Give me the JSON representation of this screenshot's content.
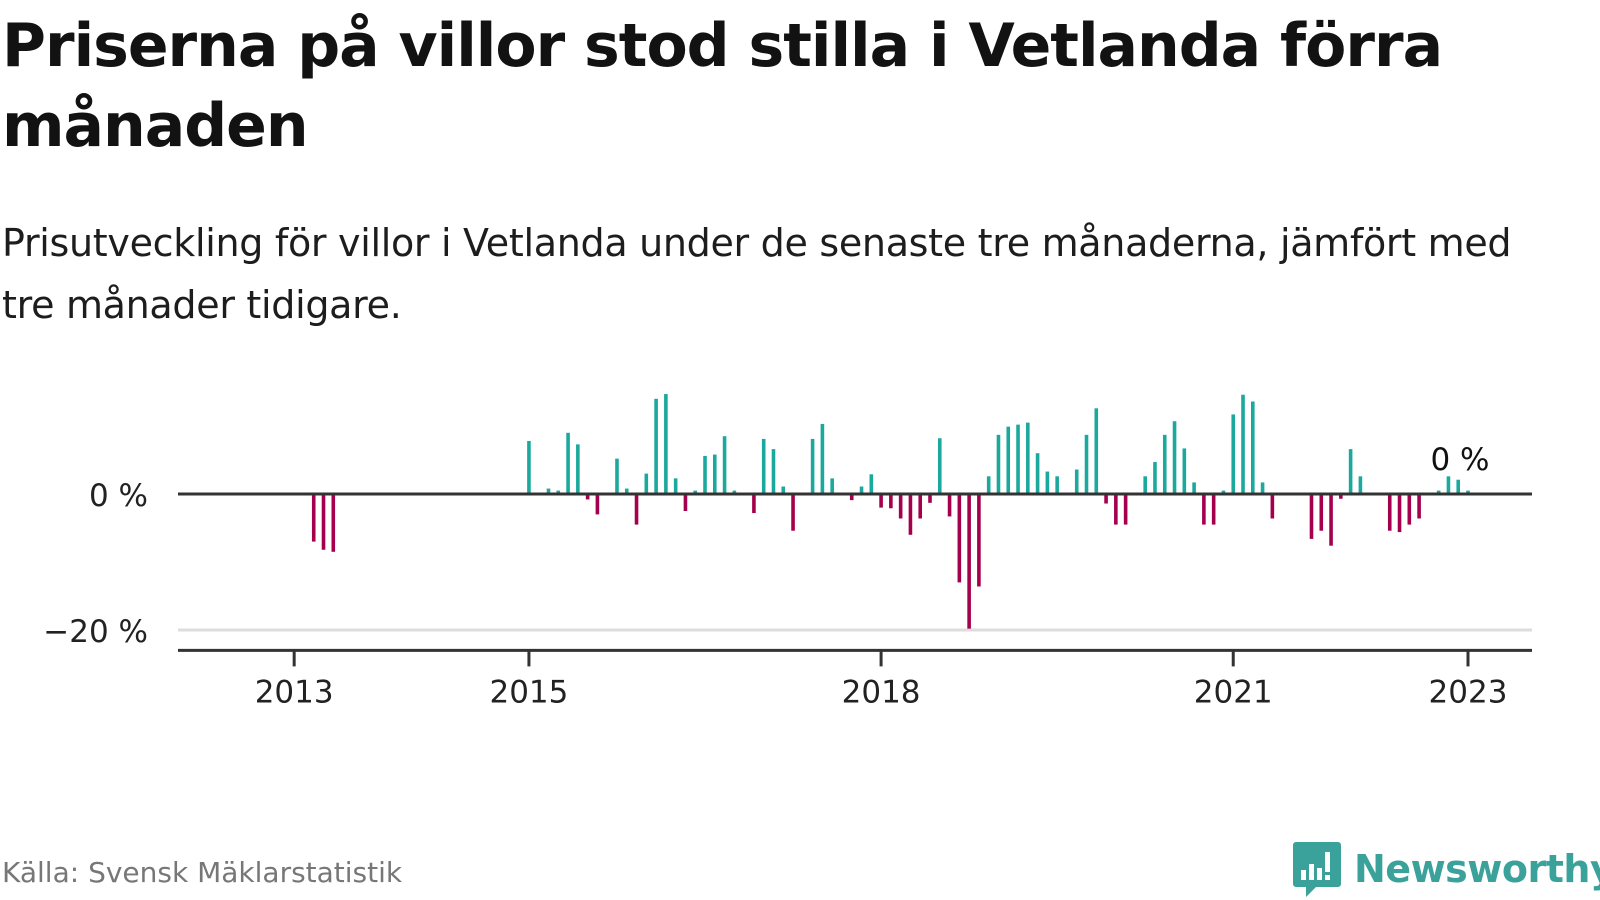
{
  "title": "Priserna på villor stod stilla i Vetlanda förra månaden",
  "subtitle": "Prisutveckling för villor i Vetlanda under de senaste tre månaderna, jämfört med tre månader tidigare.",
  "source": "Källa: Svensk Mäklarstatistik",
  "brand": "Newsworthy",
  "colors": {
    "positive": "#1ba99d",
    "negative": "#a5004e",
    "axis": "#333333",
    "grid": "#dddddd",
    "brand": "#3aa29a"
  },
  "chart_data": {
    "type": "bar",
    "title": "",
    "xlabel": "",
    "ylabel": "",
    "ylim": [
      -23,
      16
    ],
    "y_ticks": [
      {
        "value": 0,
        "label": "0 %"
      },
      {
        "value": -20,
        "label": "−20 %"
      }
    ],
    "x_ticks": [
      "2013",
      "2015",
      "2018",
      "2021",
      "2023"
    ],
    "annotation": "0 %",
    "series": [
      {
        "values": [
          [
            "2013-03",
            -7
          ],
          [
            "2013-04",
            -8.2
          ],
          [
            "2013-05",
            -8.5
          ],
          [
            "2015-01",
            7.8
          ],
          [
            "2015-03",
            0.8
          ],
          [
            "2015-04",
            0.5
          ],
          [
            "2015-05",
            9
          ],
          [
            "2015-06",
            7.3
          ],
          [
            "2015-07",
            -0.8
          ],
          [
            "2015-08",
            -3
          ],
          [
            "2015-10",
            5.2
          ],
          [
            "2015-11",
            0.8
          ],
          [
            "2015-12",
            -4.5
          ],
          [
            "2016-01",
            3
          ],
          [
            "2016-02",
            14
          ],
          [
            "2016-03",
            14.7
          ],
          [
            "2016-04",
            2.3
          ],
          [
            "2016-05",
            -2.5
          ],
          [
            "2016-06",
            0.5
          ],
          [
            "2016-07",
            5.6
          ],
          [
            "2016-08",
            5.8
          ],
          [
            "2016-09",
            8.5
          ],
          [
            "2016-10",
            0.5
          ],
          [
            "2016-12",
            -2.8
          ],
          [
            "2017-01",
            8.1
          ],
          [
            "2017-02",
            6.6
          ],
          [
            "2017-03",
            1.1
          ],
          [
            "2017-04",
            -5.4
          ],
          [
            "2017-06",
            8.1
          ],
          [
            "2017-07",
            10.3
          ],
          [
            "2017-08",
            2.3
          ],
          [
            "2017-10",
            -0.9
          ],
          [
            "2017-11",
            1.1
          ],
          [
            "2017-12",
            2.9
          ],
          [
            "2018-01",
            -2
          ],
          [
            "2018-02",
            -2.1
          ],
          [
            "2018-03",
            -3.6
          ],
          [
            "2018-04",
            -6
          ],
          [
            "2018-05",
            -3.6
          ],
          [
            "2018-06",
            -1.3
          ],
          [
            "2018-07",
            8.2
          ],
          [
            "2018-08",
            -3.3
          ],
          [
            "2018-09",
            -13
          ],
          [
            "2018-10",
            -19.8
          ],
          [
            "2018-11",
            -13.6
          ],
          [
            "2018-12",
            2.6
          ],
          [
            "2019-01",
            8.7
          ],
          [
            "2019-02",
            9.9
          ],
          [
            "2019-03",
            10.2
          ],
          [
            "2019-04",
            10.5
          ],
          [
            "2019-05",
            6
          ],
          [
            "2019-06",
            3.3
          ],
          [
            "2019-07",
            2.6
          ],
          [
            "2019-09",
            3.6
          ],
          [
            "2019-10",
            8.7
          ],
          [
            "2019-11",
            12.6
          ],
          [
            "2019-12",
            -1.4
          ],
          [
            "2020-01",
            -4.5
          ],
          [
            "2020-02",
            -4.5
          ],
          [
            "2020-04",
            2.6
          ],
          [
            "2020-05",
            4.7
          ],
          [
            "2020-06",
            8.7
          ],
          [
            "2020-07",
            10.7
          ],
          [
            "2020-08",
            6.7
          ],
          [
            "2020-09",
            1.7
          ],
          [
            "2020-10",
            -4.5
          ],
          [
            "2020-11",
            -4.5
          ],
          [
            "2020-12",
            0.5
          ],
          [
            "2021-01",
            11.7
          ],
          [
            "2021-02",
            14.6
          ],
          [
            "2021-03",
            13.6
          ],
          [
            "2021-04",
            1.7
          ],
          [
            "2021-05",
            -3.6
          ],
          [
            "2021-09",
            -6.6
          ],
          [
            "2021-10",
            -5.4
          ],
          [
            "2021-11",
            -7.6
          ],
          [
            "2021-12",
            -0.7
          ],
          [
            "2022-01",
            6.6
          ],
          [
            "2022-02",
            2.6
          ],
          [
            "2022-05",
            -5.4
          ],
          [
            "2022-06",
            -5.6
          ],
          [
            "2022-07",
            -4.5
          ],
          [
            "2022-08",
            -3.6
          ],
          [
            "2022-10",
            0.5
          ],
          [
            "2022-11",
            2.6
          ],
          [
            "2022-12",
            2.1
          ],
          [
            "2023-01",
            0.5
          ]
        ]
      }
    ]
  }
}
